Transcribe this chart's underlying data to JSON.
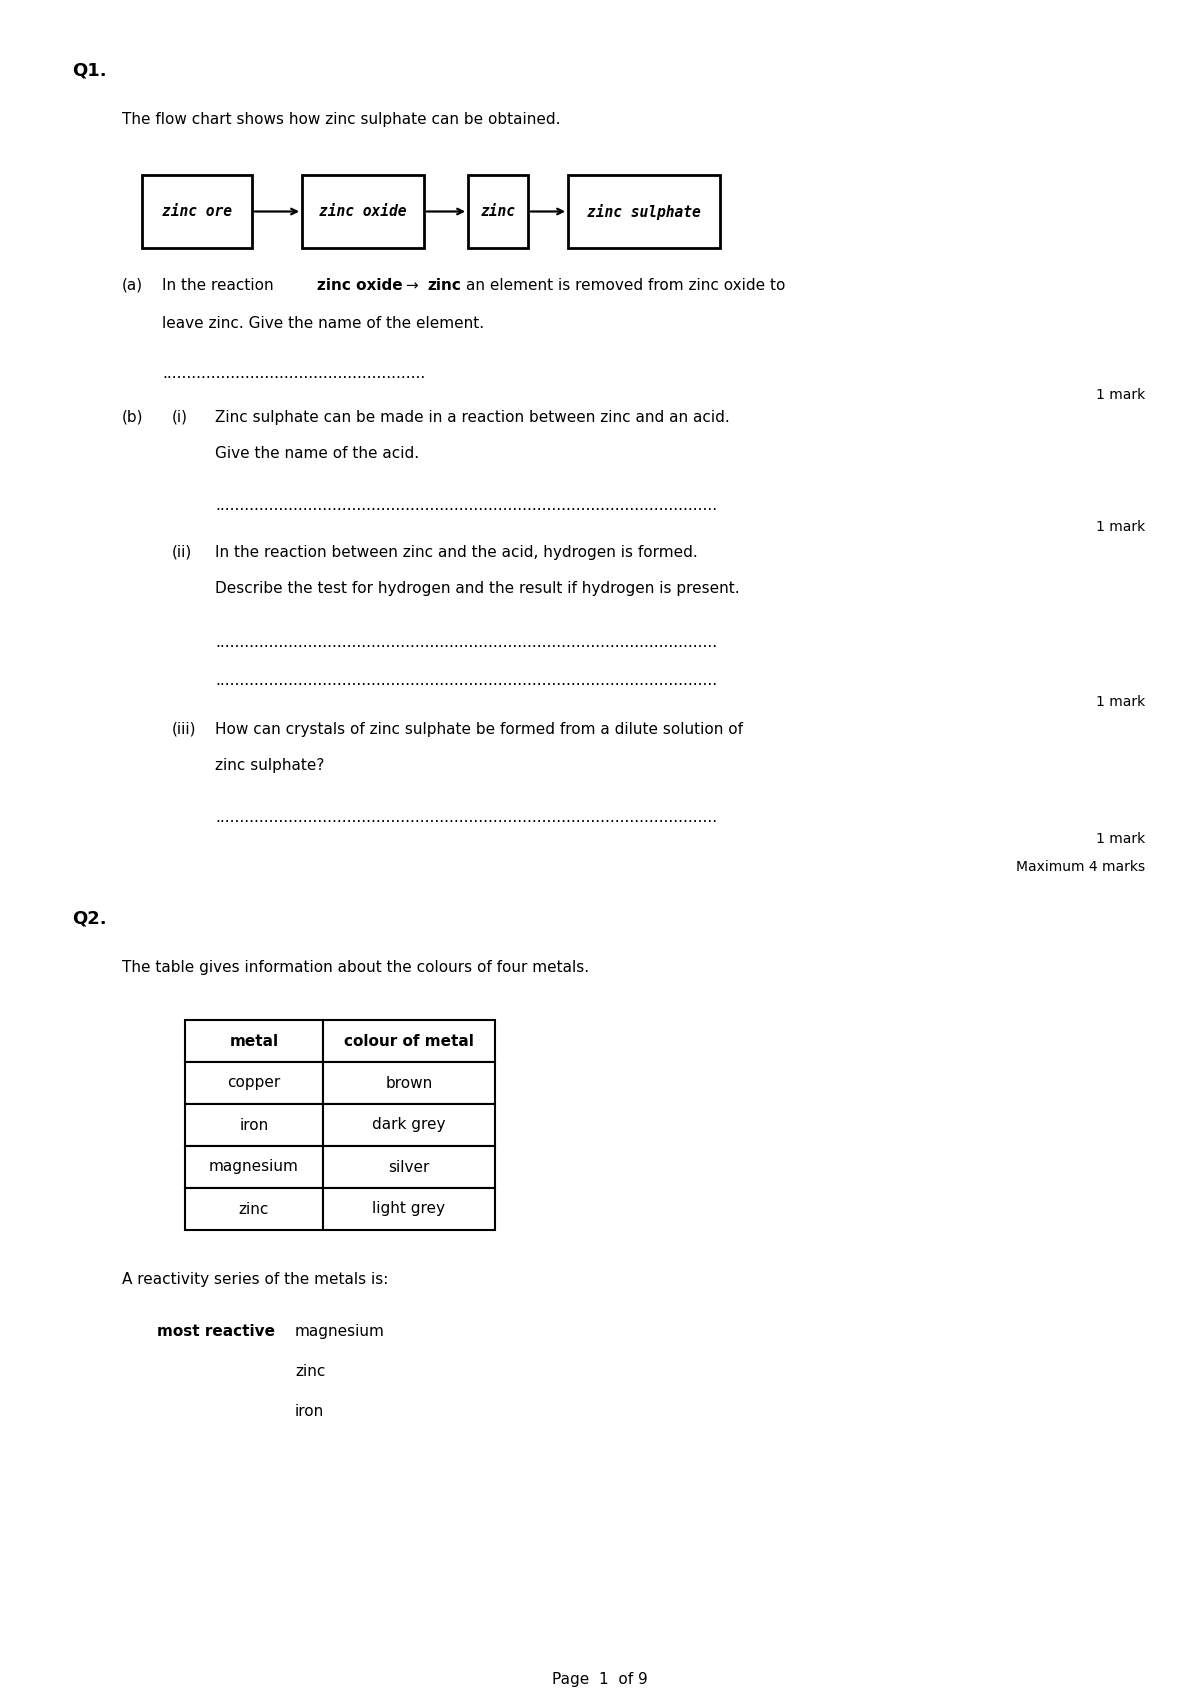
{
  "bg_color": "#ffffff",
  "page_width": 12.0,
  "page_height": 16.97,
  "q1_label": "Q1.",
  "q1_intro": "The flow chart shows how zinc sulphate can be obtained.",
  "flowchart_boxes": [
    "zinc ore",
    "zinc oxide",
    "zinc",
    "zinc sulphate"
  ],
  "q1a_label": "(a)",
  "q1b_label": "(b)",
  "q1bi_label": "(i)",
  "q1bii_label": "(ii)",
  "q1biii_label": "(iii)",
  "q1a_dots1": "......................................................",
  "q1bi_dots": ".......................................................................................................",
  "q1bii_dots1": ".......................................................................................................",
  "q1bii_dots2": ".......................................................................................................",
  "q1biii_dots": ".......................................................................................................",
  "mark1a": "1 mark",
  "mark1bi": "1 mark",
  "mark1bii": "1 mark",
  "mark1biii": "1 mark",
  "max_marks": "Maximum 4 marks",
  "q2_label": "Q2.",
  "q2_intro": "The table gives information about the colours of four metals.",
  "table_headers": [
    "metal",
    "colour of metal"
  ],
  "table_rows": [
    [
      "copper",
      "brown"
    ],
    [
      "iron",
      "dark grey"
    ],
    [
      "magnesium",
      "silver"
    ],
    [
      "zinc",
      "light grey"
    ]
  ],
  "reactivity_label": "A reactivity series of the metals is:",
  "most_reactive_label": "most reactive",
  "reactivity_series": [
    "magnesium",
    "zinc",
    "iron"
  ],
  "page_label": "Page  1  of 9",
  "font_size_q": 13,
  "font_size_body": 11,
  "font_size_small": 10
}
